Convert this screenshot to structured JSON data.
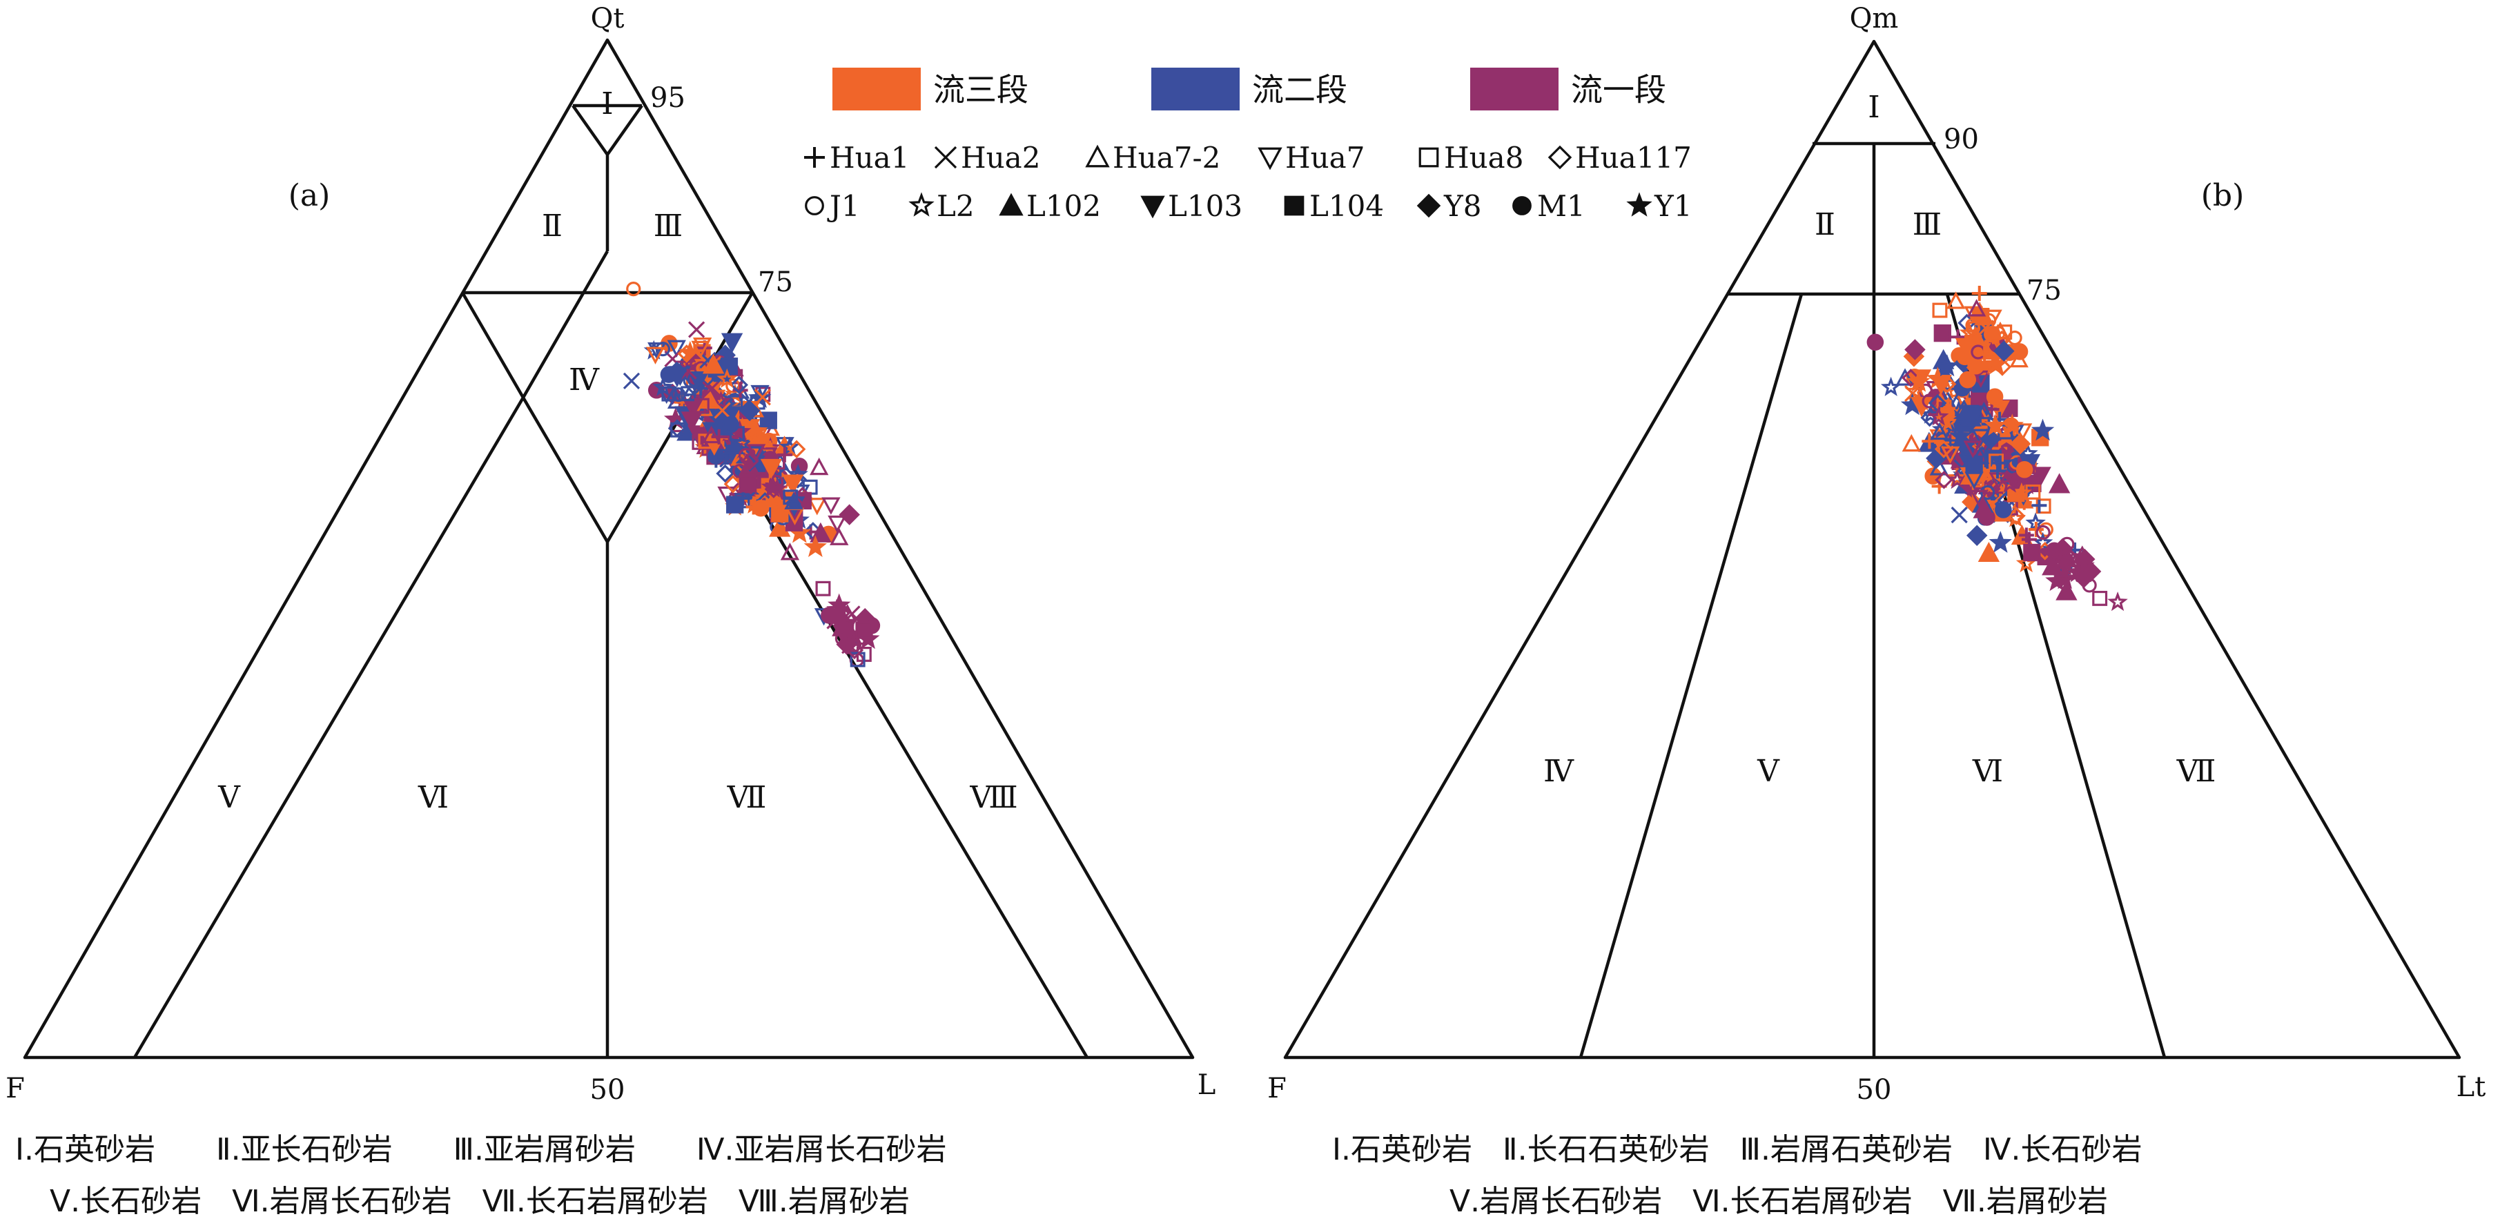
{
  "legend": {
    "groups": [
      {
        "name": "流三段",
        "color": "#F0652A"
      },
      {
        "name": "流二段",
        "color": "#3B4E9E"
      },
      {
        "name": "流一段",
        "color": "#93306B"
      }
    ],
    "wells_row1": [
      {
        "name": "Hua1",
        "symbol": "plus"
      },
      {
        "name": "Hua2",
        "symbol": "cross"
      },
      {
        "name": "Hua7-2",
        "symbol": "triangle-open"
      },
      {
        "name": "Hua7",
        "symbol": "triangle-down-open"
      },
      {
        "name": "Hua8",
        "symbol": "square-open"
      },
      {
        "name": "Hua117",
        "symbol": "diamond-open"
      }
    ],
    "wells_row2": [
      {
        "name": "J1",
        "symbol": "circle-open"
      },
      {
        "name": "L2",
        "symbol": "star-open"
      },
      {
        "name": "L102",
        "symbol": "triangle-filled"
      },
      {
        "name": "L103",
        "symbol": "triangle-down-filled"
      },
      {
        "name": "L104",
        "symbol": "square-filled"
      },
      {
        "name": "Y8",
        "symbol": "diamond-filled"
      },
      {
        "name": "M1",
        "symbol": "circle-filled"
      },
      {
        "name": "Y1",
        "symbol": "star-filled"
      }
    ]
  },
  "diagram_a": {
    "panel_label": "(a)",
    "apex_top": "Qt",
    "apex_left": "F",
    "apex_right": "L",
    "tick_95": "95",
    "tick_75": "75",
    "tick_50": "50",
    "fields": [
      "Ⅰ",
      "Ⅱ",
      "Ⅲ",
      "Ⅳ",
      "Ⅴ",
      "Ⅵ",
      "Ⅶ",
      "Ⅷ"
    ],
    "caption_line1": "Ⅰ.石英砂岩　　Ⅱ.亚长石砂岩　　Ⅲ.亚岩屑砂岩　　Ⅳ.亚岩屑长石砂岩",
    "caption_line2": "Ⅴ.长石砂岩　Ⅵ.岩屑长石砂岩　Ⅶ.长石岩屑砂岩　Ⅷ.岩屑砂岩"
  },
  "diagram_b": {
    "panel_label": "(b)",
    "apex_top": "Qm",
    "apex_left": "F",
    "apex_right": "Lt",
    "tick_90": "90",
    "tick_75": "75",
    "tick_50": "50",
    "fields": [
      "Ⅰ",
      "Ⅱ",
      "Ⅲ",
      "Ⅳ",
      "Ⅴ",
      "Ⅵ",
      "Ⅶ"
    ],
    "caption_line1": "Ⅰ.石英砂岩　Ⅱ.长石石英砂岩　Ⅲ.岩屑石英砂岩　Ⅳ.长石砂岩",
    "caption_line2": "Ⅴ.岩屑长石砂岩　Ⅵ.长石岩屑砂岩　Ⅶ.岩屑砂岩"
  }
}
